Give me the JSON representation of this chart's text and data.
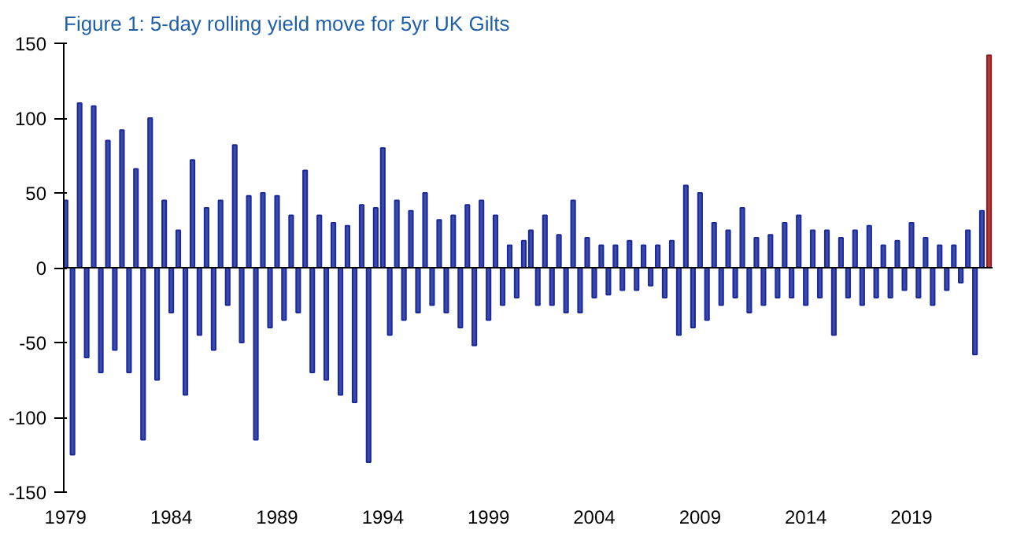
{
  "chart_data": {
    "type": "bar",
    "title": "Figure 1: 5-day rolling yield move for 5yr UK Gilts",
    "series": [
      {
        "color": "#1a2a9c",
        "x": [
          "1979-01",
          "1979-05",
          "1979-09",
          "1980-01",
          "1980-05",
          "1980-09",
          "1981-01",
          "1981-05",
          "1981-09",
          "1982-01",
          "1982-05",
          "1982-09",
          "1983-01",
          "1983-05",
          "1983-09",
          "1984-01",
          "1984-05",
          "1984-09",
          "1985-01",
          "1985-05",
          "1985-09",
          "1986-01",
          "1986-05",
          "1986-09",
          "1987-01",
          "1987-05",
          "1987-09",
          "1988-01",
          "1988-05",
          "1988-09",
          "1989-01",
          "1989-05",
          "1989-09",
          "1990-01",
          "1990-05",
          "1990-09",
          "1991-01",
          "1991-05",
          "1991-09",
          "1992-01",
          "1992-05",
          "1992-09",
          "1993-01",
          "1993-05",
          "1993-09",
          "1994-01",
          "1994-05",
          "1994-09",
          "1995-01",
          "1995-05",
          "1995-09",
          "1996-01",
          "1996-05",
          "1996-09",
          "1997-01",
          "1997-05",
          "1997-09",
          "1998-01",
          "1998-05",
          "1998-09",
          "1999-01",
          "1999-05",
          "1999-09",
          "2000-01",
          "2000-05",
          "2000-09",
          "2001-01",
          "2001-05",
          "2001-09",
          "2002-01",
          "2002-05",
          "2002-09",
          "2003-01",
          "2003-05",
          "2003-09",
          "2004-01",
          "2004-05",
          "2004-09",
          "2005-01",
          "2005-05",
          "2005-09",
          "2006-01",
          "2006-05",
          "2006-09",
          "2007-01",
          "2007-05",
          "2007-09",
          "2008-01",
          "2008-05",
          "2008-09",
          "2009-01",
          "2009-05",
          "2009-09",
          "2010-01",
          "2010-05",
          "2010-09",
          "2011-01",
          "2011-05",
          "2011-09",
          "2012-01",
          "2012-05",
          "2012-09",
          "2013-01",
          "2013-05",
          "2013-09",
          "2014-01",
          "2014-05",
          "2014-09",
          "2015-01",
          "2015-05",
          "2015-09",
          "2016-01",
          "2016-05",
          "2016-09",
          "2017-01",
          "2017-05",
          "2017-09",
          "2018-01",
          "2018-05",
          "2018-09",
          "2019-01",
          "2019-05",
          "2019-09",
          "2020-01",
          "2020-05",
          "2020-09",
          "2021-01",
          "2021-05",
          "2021-09",
          "2022-01",
          "2022-05"
        ],
        "values": [
          45,
          -125,
          110,
          -60,
          108,
          -70,
          85,
          -55,
          92,
          -70,
          66,
          -115,
          100,
          -75,
          45,
          -30,
          25,
          -85,
          72,
          -45,
          40,
          -55,
          45,
          -25,
          82,
          -50,
          48,
          -115,
          50,
          -40,
          48,
          -35,
          35,
          -30,
          65,
          -70,
          35,
          -75,
          30,
          -85,
          28,
          -90,
          42,
          -130,
          40,
          80,
          -45,
          45,
          -35,
          38,
          -30,
          50,
          -25,
          32,
          -30,
          35,
          -40,
          42,
          -52,
          45,
          -35,
          35,
          -25,
          15,
          -20,
          18,
          25,
          -25,
          35,
          -25,
          22,
          -30,
          45,
          -30,
          20,
          -20,
          15,
          -18,
          15,
          -15,
          18,
          -15,
          15,
          -12,
          15,
          -20,
          18,
          -45,
          55,
          -40,
          50,
          -35,
          30,
          -25,
          25,
          -20,
          40,
          -30,
          20,
          -25,
          22,
          -20,
          30,
          -20,
          35,
          -25,
          25,
          -20,
          25,
          -45,
          20,
          -20,
          25,
          -25,
          28,
          -20,
          15,
          -20,
          18,
          -15,
          30,
          -20,
          20,
          -25,
          15,
          -15,
          15,
          -10,
          25,
          -58,
          38
        ]
      },
      {
        "color": "#9b1b1b",
        "x": [
          "2022-09"
        ],
        "values": [
          142
        ]
      }
    ],
    "xlim": [
      "1978-12",
      "2022-11"
    ],
    "xticks": [
      "1979",
      "1984",
      "1989",
      "1994",
      "1999",
      "2004",
      "2009",
      "2014",
      "2019"
    ],
    "ylim": [
      -150,
      150
    ],
    "yticks": [
      -150,
      -100,
      -50,
      0,
      50,
      100,
      150
    ],
    "ref_lines": [
      {
        "axis": "y",
        "value": 0,
        "color": "#000000"
      }
    ],
    "grid": false
  }
}
